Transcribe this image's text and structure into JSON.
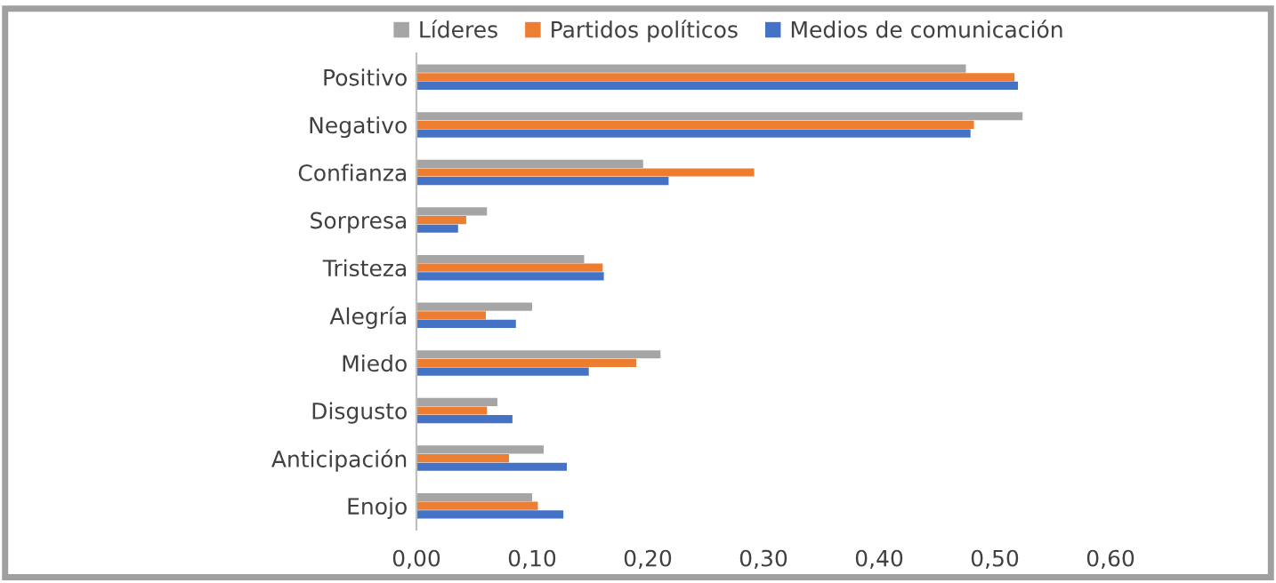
{
  "chart_data": {
    "type": "bar",
    "orientation": "horizontal",
    "categories": [
      "Positivo",
      "Negativo",
      "Confianza",
      "Sorpresa",
      "Tristeza",
      "Alegría",
      "Miedo",
      "Disgusto",
      "Anticipación",
      "Enojo"
    ],
    "series": [
      {
        "name": "Líderes",
        "color": "#a5a5a5",
        "values": [
          0.475,
          0.524,
          0.196,
          0.061,
          0.145,
          0.1,
          0.211,
          0.07,
          0.11,
          0.1
        ]
      },
      {
        "name": "Partidos políticos",
        "color": "#ed7d31",
        "values": [
          0.517,
          0.482,
          0.292,
          0.043,
          0.161,
          0.06,
          0.19,
          0.061,
          0.08,
          0.105
        ]
      },
      {
        "name": "Medios de comunicación",
        "color": "#4472c4",
        "values": [
          0.52,
          0.479,
          0.218,
          0.036,
          0.162,
          0.086,
          0.149,
          0.083,
          0.13,
          0.127
        ]
      }
    ],
    "xlim": [
      0,
      0.6
    ],
    "xticks": [
      {
        "value": 0,
        "label": "0,00"
      },
      {
        "value": 0.1,
        "label": "0,10"
      },
      {
        "value": 0.2,
        "label": "0,20"
      },
      {
        "value": 0.3,
        "label": "0,30"
      },
      {
        "value": 0.4,
        "label": "0,40"
      },
      {
        "value": 0.5,
        "label": "0,50"
      },
      {
        "value": 0.6,
        "label": "0,60"
      }
    ],
    "grid": false,
    "legend": "top"
  }
}
